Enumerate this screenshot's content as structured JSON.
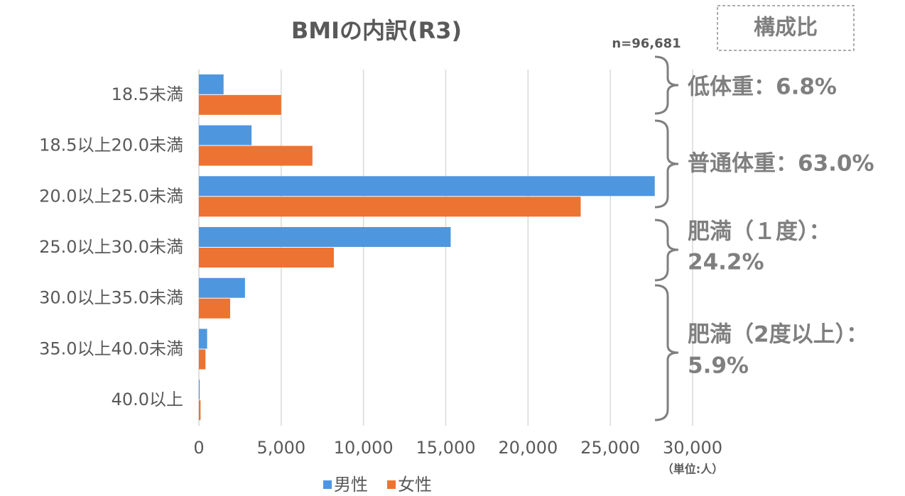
{
  "chart_data": {
    "type": "barh",
    "title": "BMIの内訳(R3)",
    "subtitle": "n=96,681",
    "badge": "構成比",
    "unit_note": "（単位:人）",
    "categories": [
      "18.5未満",
      "18.5以上20.0未満",
      "20.0以上25.0未満",
      "25.0以上30.0未満",
      "30.0以上35.0未満",
      "35.0以上40.0未満",
      "40.0以上"
    ],
    "series": [
      {
        "name": "男性",
        "color": "#4e97df",
        "values": [
          1500,
          3200,
          27700,
          15300,
          2800,
          500,
          50
        ]
      },
      {
        "name": "女性",
        "color": "#ed7332",
        "values": [
          5000,
          6900,
          23200,
          8200,
          1900,
          400,
          100
        ]
      }
    ],
    "xlim": [
      0,
      30000
    ],
    "xticks": [
      0,
      {
        "value": 5000,
        "label": "5,000"
      },
      {
        "value": 10000,
        "label": "10,000"
      },
      {
        "value": 15000,
        "label": "15,000"
      },
      {
        "value": 20000,
        "label": "20,000"
      },
      {
        "value": 25000,
        "label": "25,000"
      },
      {
        "value": 30000,
        "label": "30,000"
      }
    ],
    "grid": true,
    "annotations": [
      {
        "lines": [
          "低体重：6.8%"
        ]
      },
      {
        "lines": [
          "普通体重：63.0%"
        ]
      },
      {
        "lines": [
          "肥満（１度）：",
          "24.2%"
        ]
      },
      {
        "lines": [
          "肥満（2度以上）：",
          "5.9%"
        ]
      }
    ]
  }
}
